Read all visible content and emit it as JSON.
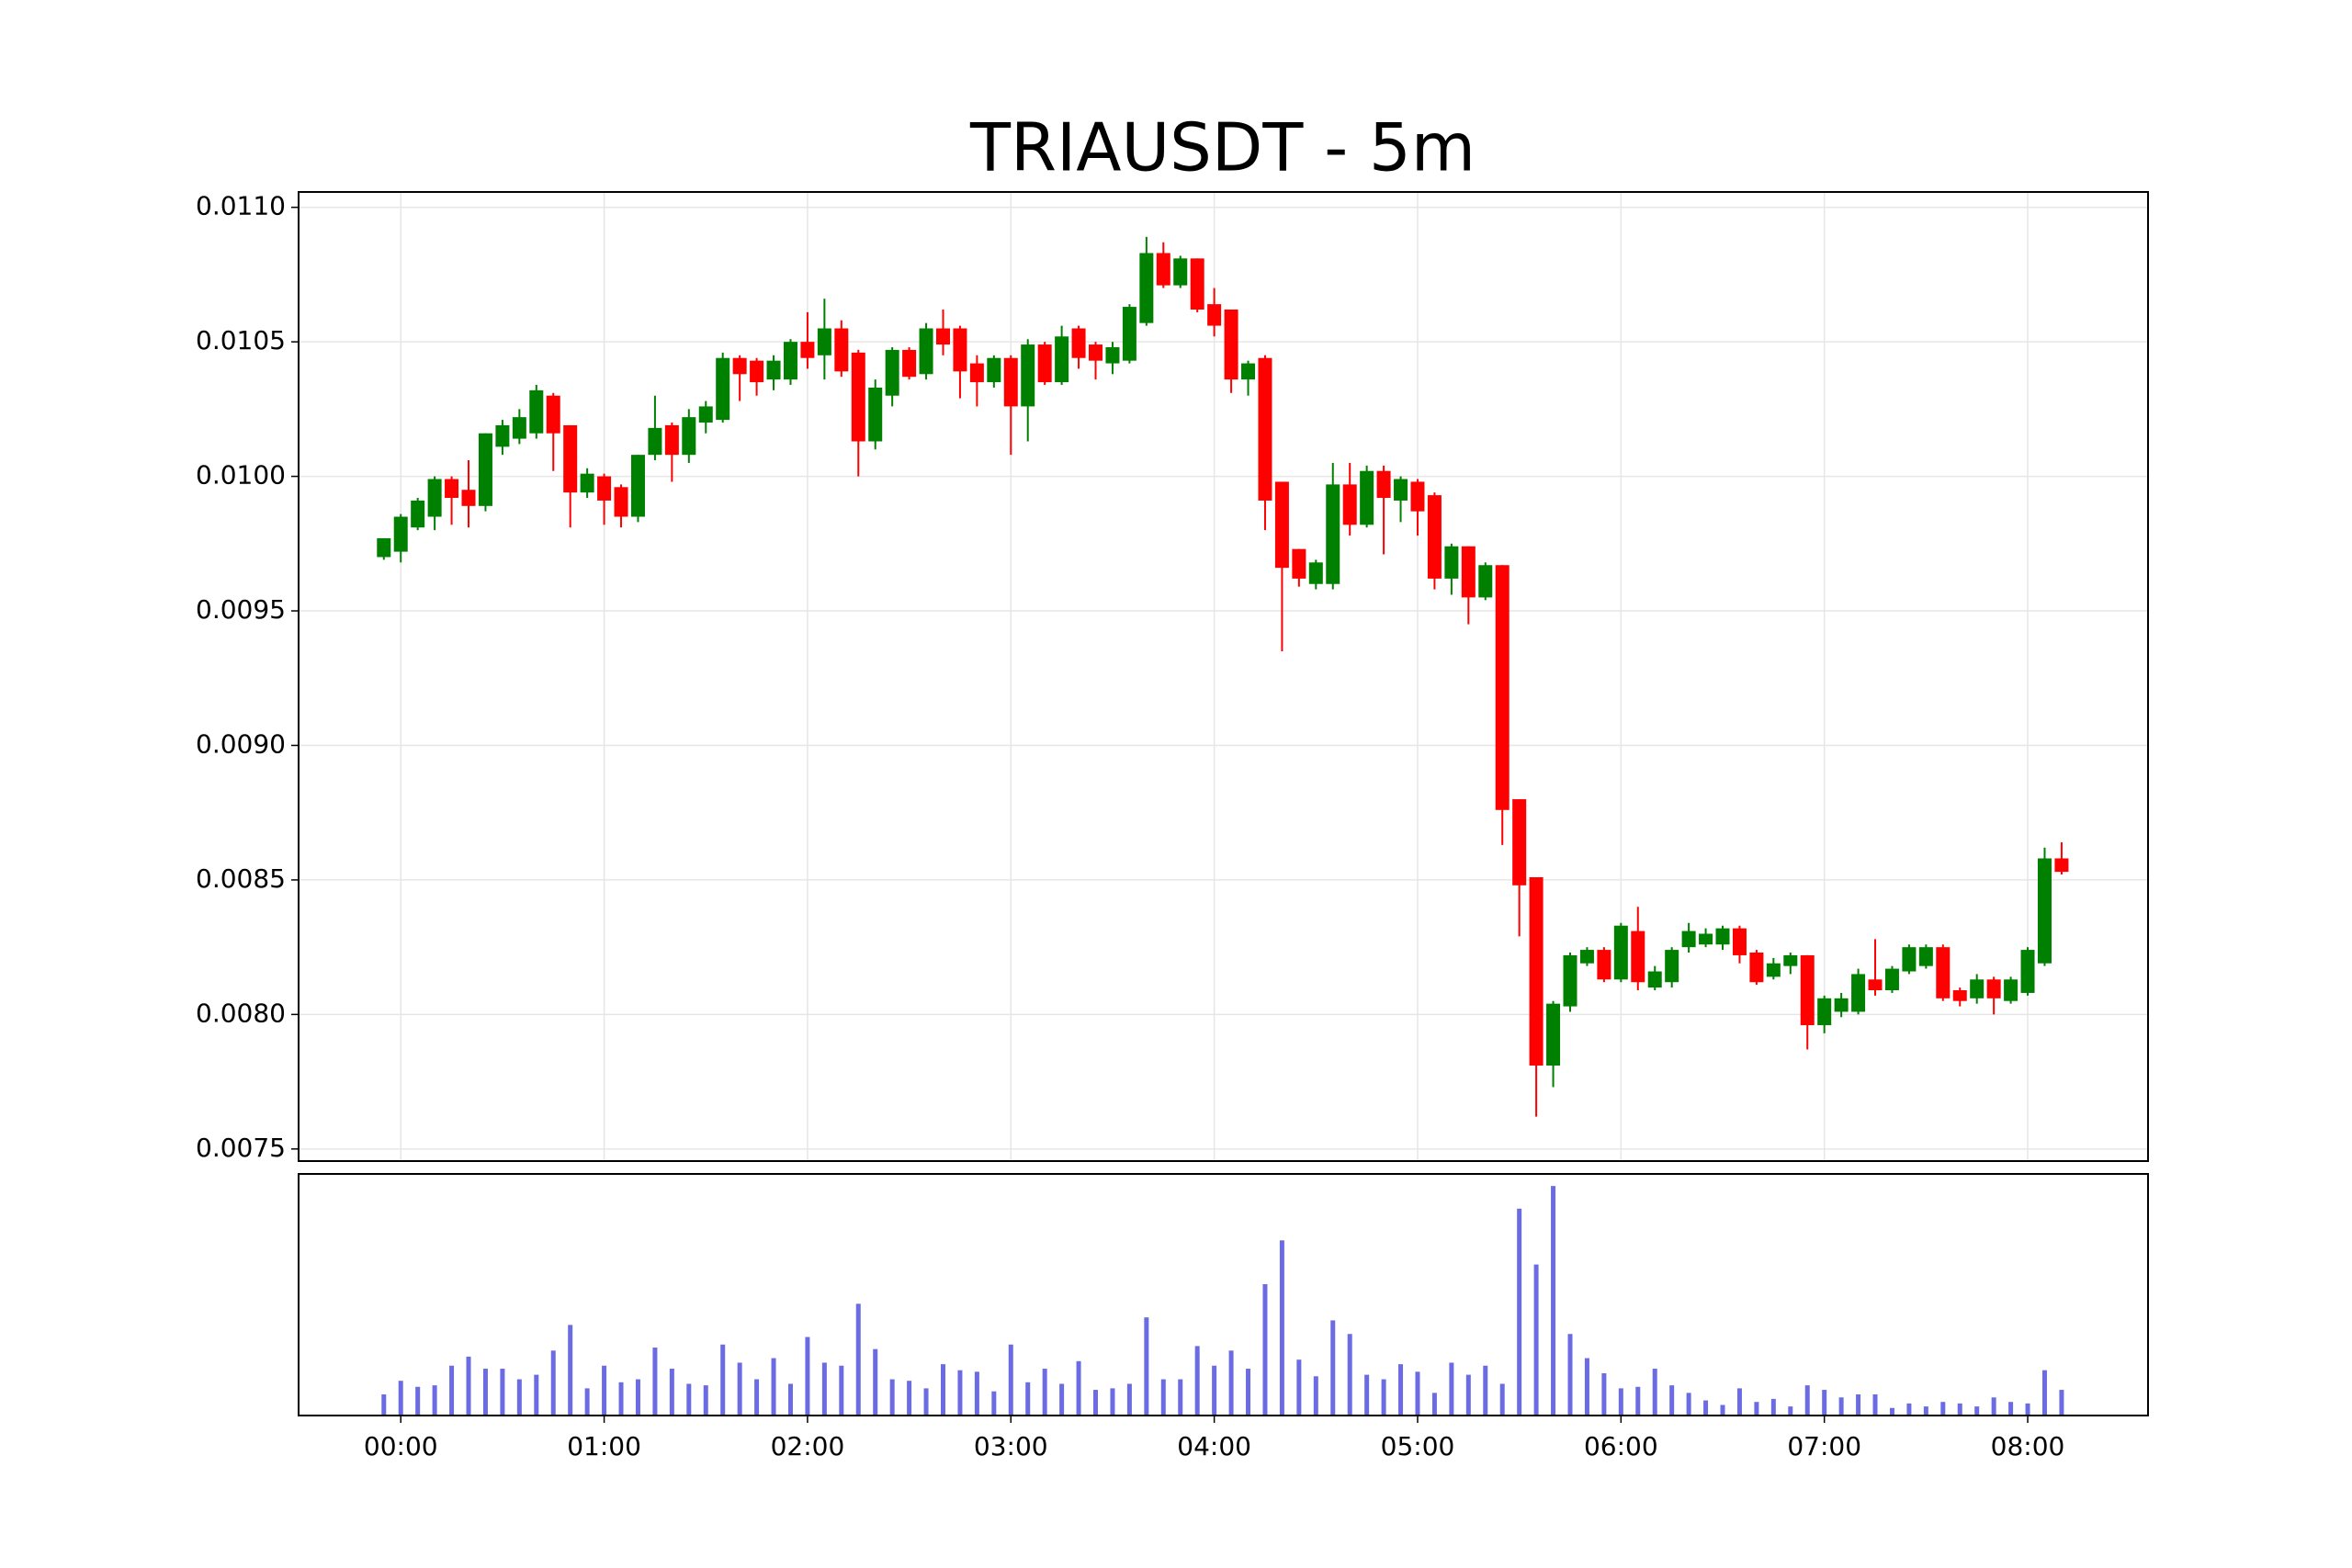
{
  "chart_data": {
    "type": "candlestick",
    "title": "TRIAUSDT - 5m",
    "x": [
      "23:55",
      "00:00",
      "00:05",
      "00:10",
      "00:15",
      "00:20",
      "00:25",
      "00:30",
      "00:35",
      "00:40",
      "00:45",
      "00:50",
      "00:55",
      "01:00",
      "01:05",
      "01:10",
      "01:15",
      "01:20",
      "01:25",
      "01:30",
      "01:35",
      "01:40",
      "01:45",
      "01:50",
      "01:55",
      "02:00",
      "02:05",
      "02:10",
      "02:15",
      "02:20",
      "02:25",
      "02:30",
      "02:35",
      "02:40",
      "02:45",
      "02:50",
      "02:55",
      "03:00",
      "03:05",
      "03:10",
      "03:15",
      "03:20",
      "03:25",
      "03:30",
      "03:35",
      "03:40",
      "03:45",
      "03:50",
      "03:55",
      "04:00",
      "04:05",
      "04:10",
      "04:15",
      "04:20",
      "04:25",
      "04:30",
      "04:35",
      "04:40",
      "04:45",
      "04:50",
      "04:55",
      "05:00",
      "05:05",
      "05:10",
      "05:15",
      "05:20",
      "05:25",
      "05:30",
      "05:35",
      "05:40",
      "05:45",
      "05:50",
      "05:55",
      "06:00",
      "06:05",
      "06:10",
      "06:15",
      "06:20",
      "06:25",
      "06:30",
      "06:35",
      "06:40",
      "06:45",
      "06:50",
      "06:55",
      "07:00",
      "07:05",
      "07:10",
      "07:15",
      "07:20",
      "07:25",
      "07:30",
      "07:35",
      "07:40",
      "07:45",
      "07:50",
      "07:55",
      "08:00",
      "08:05",
      "08:10"
    ],
    "open": [
      0.0097,
      0.00972,
      0.00981,
      0.00985,
      0.00999,
      0.00995,
      0.00989,
      0.01011,
      0.01014,
      0.01016,
      0.0103,
      0.01019,
      0.00994,
      0.01,
      0.00996,
      0.00985,
      0.01008,
      0.01019,
      0.01008,
      0.0102,
      0.01021,
      0.01044,
      0.01043,
      0.01036,
      0.01036,
      0.0105,
      0.01045,
      0.01055,
      0.01046,
      0.01013,
      0.0103,
      0.01047,
      0.01038,
      0.01055,
      0.01055,
      0.01042,
      0.01035,
      0.01044,
      0.01026,
      0.01049,
      0.01035,
      0.01055,
      0.01049,
      0.01042,
      0.01043,
      0.01057,
      0.01083,
      0.01071,
      0.01081,
      0.01064,
      0.01062,
      0.01036,
      0.01044,
      0.00998,
      0.00973,
      0.0096,
      0.0096,
      0.00997,
      0.00982,
      0.01002,
      0.00991,
      0.00998,
      0.00993,
      0.00962,
      0.00974,
      0.00955,
      0.00967,
      0.0088,
      0.00851,
      0.00781,
      0.00803,
      0.00819,
      0.00824,
      0.00813,
      0.00831,
      0.0081,
      0.00812,
      0.00825,
      0.00826,
      0.00826,
      0.00832,
      0.00823,
      0.00814,
      0.00818,
      0.00822,
      0.00796,
      0.00801,
      0.00801,
      0.00813,
      0.00809,
      0.00816,
      0.00818,
      0.00825,
      0.00809,
      0.00806,
      0.00813,
      0.00805,
      0.00808,
      0.00819,
      0.00858
    ],
    "high": [
      0.00977,
      0.00986,
      0.00992,
      0.01,
      0.01,
      0.01006,
      0.01016,
      0.01021,
      0.01025,
      0.01034,
      0.01031,
      0.01019,
      0.01003,
      0.01001,
      0.00997,
      0.01008,
      0.0103,
      0.0102,
      0.01025,
      0.01028,
      0.01046,
      0.01045,
      0.01044,
      0.01045,
      0.01051,
      0.01061,
      0.01066,
      0.01058,
      0.01047,
      0.01036,
      0.01048,
      0.01048,
      0.01057,
      0.01062,
      0.01056,
      0.01045,
      0.01045,
      0.01045,
      0.01051,
      0.0105,
      0.01056,
      0.01056,
      0.0105,
      0.0105,
      0.01064,
      0.01089,
      0.01087,
      0.01082,
      0.01081,
      0.0107,
      0.01062,
      0.01043,
      0.01045,
      0.00998,
      0.00973,
      0.00969,
      0.01005,
      0.01005,
      0.01004,
      0.01004,
      0.01,
      0.00999,
      0.00994,
      0.00975,
      0.00974,
      0.00968,
      0.00967,
      0.0088,
      0.00851,
      0.00805,
      0.00823,
      0.00825,
      0.00825,
      0.00834,
      0.0084,
      0.00818,
      0.00825,
      0.00834,
      0.00832,
      0.00833,
      0.00833,
      0.00824,
      0.00821,
      0.00823,
      0.00822,
      0.00807,
      0.00808,
      0.00817,
      0.00828,
      0.00818,
      0.00826,
      0.00826,
      0.00826,
      0.0081,
      0.00815,
      0.00814,
      0.00814,
      0.00825,
      0.00862,
      0.00864
    ],
    "low": [
      0.00969,
      0.00968,
      0.0098,
      0.0098,
      0.00982,
      0.00981,
      0.00987,
      0.01008,
      0.01012,
      0.01014,
      0.01002,
      0.00981,
      0.00992,
      0.00982,
      0.00981,
      0.00983,
      0.01006,
      0.00998,
      0.01005,
      0.01016,
      0.0102,
      0.01028,
      0.0103,
      0.01032,
      0.01034,
      0.0104,
      0.01036,
      0.01037,
      0.01,
      0.0101,
      0.01026,
      0.01036,
      0.01036,
      0.01045,
      0.01029,
      0.01026,
      0.01033,
      0.01008,
      0.01013,
      0.01034,
      0.01034,
      0.0104,
      0.01036,
      0.01038,
      0.01042,
      0.01056,
      0.0107,
      0.0107,
      0.01061,
      0.01052,
      0.01031,
      0.0103,
      0.0098,
      0.00935,
      0.00959,
      0.00958,
      0.00958,
      0.00978,
      0.00981,
      0.00971,
      0.00983,
      0.00978,
      0.00958,
      0.00956,
      0.00945,
      0.00954,
      0.00863,
      0.00829,
      0.00762,
      0.00773,
      0.00801,
      0.00818,
      0.00812,
      0.00812,
      0.00809,
      0.00809,
      0.0081,
      0.00823,
      0.00825,
      0.00824,
      0.00819,
      0.00811,
      0.00813,
      0.00815,
      0.00787,
      0.00793,
      0.00799,
      0.008,
      0.00807,
      0.00808,
      0.00815,
      0.00817,
      0.00805,
      0.00803,
      0.00804,
      0.008,
      0.00804,
      0.00807,
      0.00818,
      0.00852
    ],
    "close": [
      0.00977,
      0.00985,
      0.00991,
      0.00999,
      0.00992,
      0.00989,
      0.01016,
      0.01019,
      0.01022,
      0.01032,
      0.01016,
      0.00994,
      0.01001,
      0.00991,
      0.00985,
      0.01008,
      0.01018,
      0.01008,
      0.01022,
      0.01026,
      0.01044,
      0.01038,
      0.01035,
      0.01043,
      0.0105,
      0.01044,
      0.01055,
      0.01039,
      0.01013,
      0.01033,
      0.01047,
      0.01037,
      0.01055,
      0.01049,
      0.01039,
      0.01035,
      0.01044,
      0.01026,
      0.01049,
      0.01035,
      0.01052,
      0.01044,
      0.01043,
      0.01048,
      0.01063,
      0.01083,
      0.01071,
      0.01081,
      0.01062,
      0.01056,
      0.01036,
      0.01042,
      0.00991,
      0.00966,
      0.00962,
      0.00968,
      0.00997,
      0.00982,
      0.01002,
      0.00992,
      0.00999,
      0.00987,
      0.00962,
      0.00974,
      0.00955,
      0.00967,
      0.00876,
      0.00848,
      0.00781,
      0.00804,
      0.00822,
      0.00824,
      0.00813,
      0.00833,
      0.00812,
      0.00816,
      0.00824,
      0.00831,
      0.0083,
      0.00832,
      0.00822,
      0.00812,
      0.00819,
      0.00822,
      0.00796,
      0.00806,
      0.00806,
      0.00815,
      0.00809,
      0.00817,
      0.00825,
      0.00825,
      0.00806,
      0.00805,
      0.00813,
      0.00806,
      0.00813,
      0.00824,
      0.00858,
      0.00853
    ],
    "up_color": "#008000",
    "down_color": "#ff0000",
    "ylim": [
      0.007455,
      0.011057
    ],
    "yticks": [
      {
        "value": 0.0075,
        "label": "0.0075"
      },
      {
        "value": 0.008,
        "label": "0.0080"
      },
      {
        "value": 0.0085,
        "label": "0.0085"
      },
      {
        "value": 0.009,
        "label": "0.0090"
      },
      {
        "value": 0.0095,
        "label": "0.0095"
      },
      {
        "value": 0.01,
        "label": "0.0100"
      },
      {
        "value": 0.0105,
        "label": "0.0105"
      },
      {
        "value": 0.011,
        "label": "0.0110"
      }
    ],
    "xticks": [
      "00:00",
      "01:00",
      "02:00",
      "03:00",
      "04:00",
      "05:00",
      "06:00",
      "07:00",
      "08:00"
    ],
    "grid": true,
    "volume": {
      "values": [
        14,
        23,
        19,
        20,
        33,
        39,
        31,
        31,
        24,
        27,
        43,
        60,
        18,
        33,
        22,
        24,
        45,
        31,
        21,
        20,
        47,
        35,
        24,
        38,
        21,
        52,
        35,
        33,
        74,
        44,
        24,
        23,
        18,
        34,
        30,
        29,
        16,
        47,
        22,
        31,
        21,
        36,
        17,
        18,
        21,
        65,
        24,
        24,
        46,
        33,
        43,
        31,
        87,
        116,
        37,
        26,
        63,
        54,
        27,
        24,
        34,
        29,
        15,
        35,
        27,
        33,
        21,
        137,
        100,
        152,
        54,
        38,
        28,
        18,
        19,
        31,
        20,
        15,
        10,
        7,
        18,
        9,
        11,
        6,
        20,
        17,
        12,
        14,
        14,
        5,
        8,
        6,
        9,
        8,
        6,
        12,
        9,
        8,
        30,
        17
      ],
      "color": "#6b6be3",
      "ylim": [
        0,
        160
      ]
    }
  }
}
